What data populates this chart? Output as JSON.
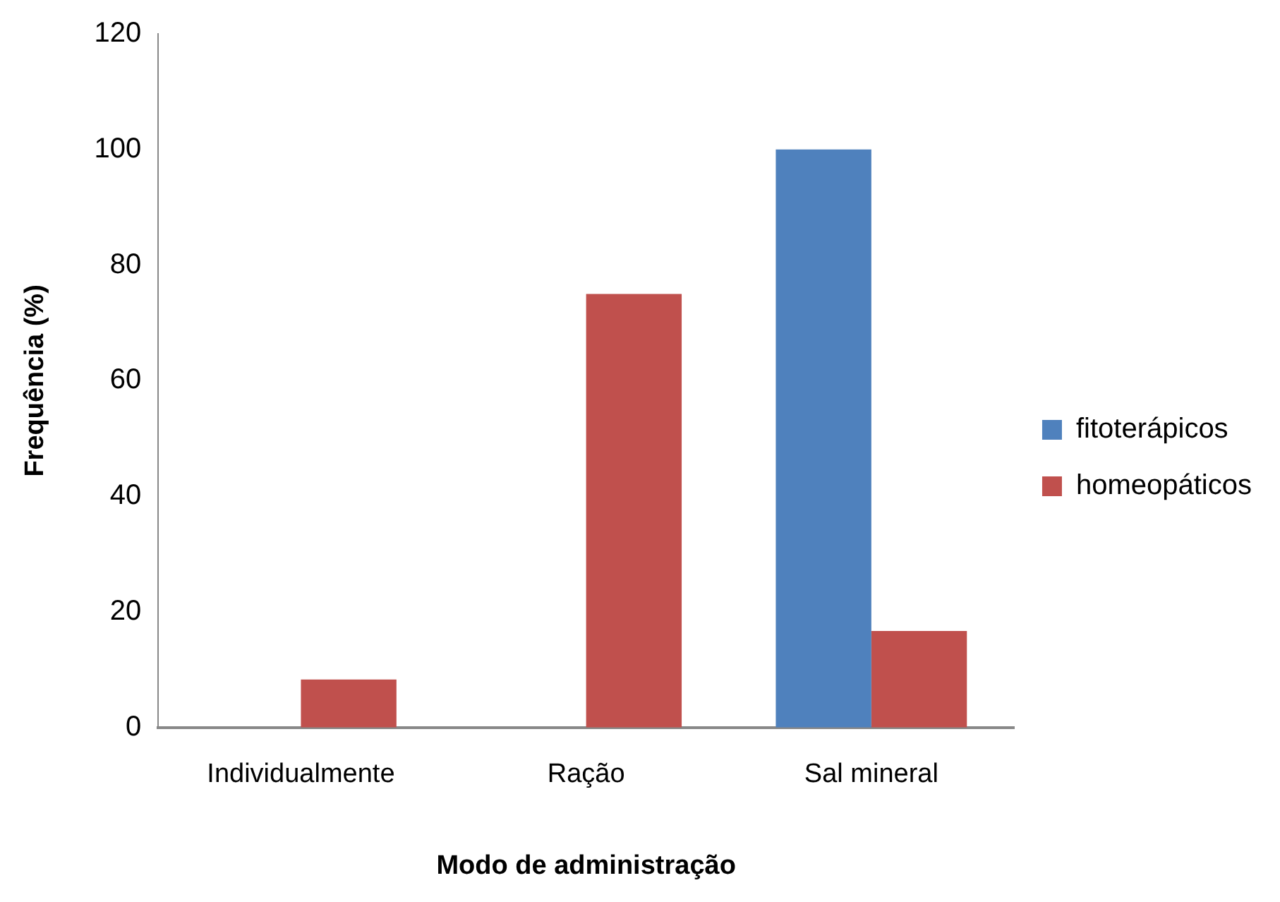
{
  "chart_data": {
    "type": "bar",
    "xlabel": "Modo de administração",
    "ylabel": "Frequência (%)",
    "categories": [
      "Individualmente",
      "Ração",
      "Sal mineral"
    ],
    "series": [
      {
        "name": "fitoterápicos",
        "color": "#4f81bd",
        "values": [
          0,
          0,
          100
        ]
      },
      {
        "name": "homeopáticos",
        "color": "#c0504d",
        "values": [
          8.3,
          75,
          16.7
        ]
      }
    ],
    "ylim": [
      0,
      120
    ],
    "yticks": [
      0,
      20,
      40,
      60,
      80,
      100,
      120
    ],
    "grid": false,
    "legend": "right"
  }
}
